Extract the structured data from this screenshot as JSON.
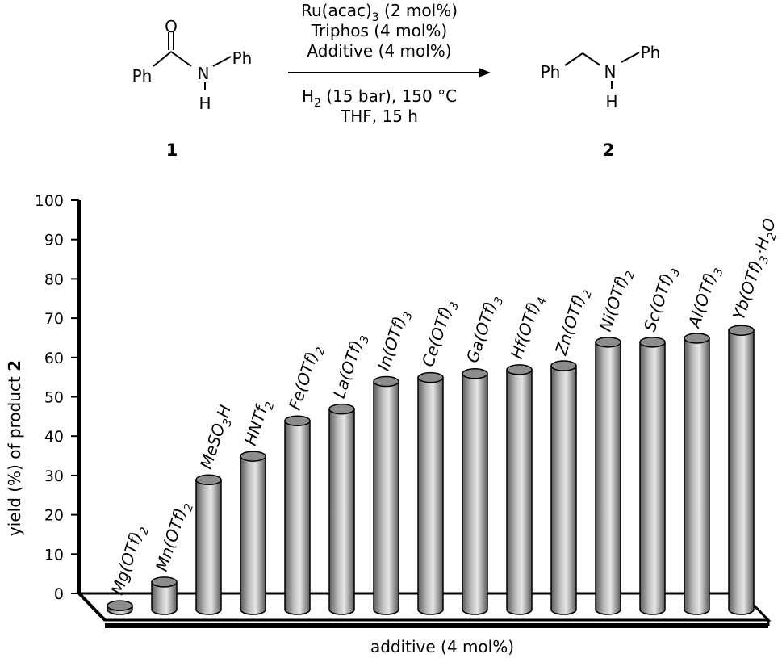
{
  "scheme": {
    "reactant": {
      "top_atom": "O",
      "left_group": "Ph",
      "n_atom": "N",
      "right_group": "Ph",
      "h_atom": "H",
      "number": "1"
    },
    "product": {
      "left_group": "Ph",
      "n_atom": "N",
      "right_group": "Ph",
      "h_atom": "H",
      "number": "2"
    },
    "conditions_above": [
      {
        "text": "Ru(acac)",
        "sub": "3",
        "tail": " (2 mol%)"
      },
      {
        "text": "Triphos (4 mol%)",
        "sub": "",
        "tail": ""
      },
      {
        "text": "Additive (4 mol%)",
        "sub": "",
        "tail": ""
      }
    ],
    "conditions_below": [
      {
        "text": "H",
        "sub": "2",
        "tail": " (15 bar), 150 °C"
      },
      {
        "text": "THF, 15 h",
        "sub": "",
        "tail": ""
      }
    ]
  },
  "chart_data": {
    "type": "bar",
    "ylabel_prefix": "yield (%) of product ",
    "ylabel_bold": "2",
    "xlabel": "additive (4 mol%)",
    "ylim": [
      0,
      100
    ],
    "yticks": [
      "0",
      "10",
      "20",
      "30",
      "40",
      "50",
      "60",
      "70",
      "80",
      "90",
      "100"
    ],
    "categories": [
      {
        "parts": [
          [
            "Mg(OTf)",
            ""
          ],
          [
            "2",
            "sub"
          ]
        ]
      },
      {
        "parts": [
          [
            "Mn(OTf)",
            ""
          ],
          [
            "2",
            "sub"
          ]
        ]
      },
      {
        "parts": [
          [
            "MeSO",
            ""
          ],
          [
            "3",
            "sub"
          ],
          [
            "H",
            ""
          ]
        ]
      },
      {
        "parts": [
          [
            "HNTf",
            ""
          ],
          [
            "2",
            "sub"
          ]
        ]
      },
      {
        "parts": [
          [
            "Fe(OTf)",
            ""
          ],
          [
            "2",
            "sub"
          ]
        ]
      },
      {
        "parts": [
          [
            "La(OTf)",
            ""
          ],
          [
            "3",
            "sub"
          ]
        ]
      },
      {
        "parts": [
          [
            "In(OTf)",
            ""
          ],
          [
            "3",
            "sub"
          ]
        ]
      },
      {
        "parts": [
          [
            "Ce(OTf)",
            ""
          ],
          [
            "3",
            "sub"
          ]
        ]
      },
      {
        "parts": [
          [
            "Ga(OTf)",
            ""
          ],
          [
            "3",
            "sub"
          ]
        ]
      },
      {
        "parts": [
          [
            "Hf(OTf)",
            ""
          ],
          [
            "4",
            "sub"
          ]
        ]
      },
      {
        "parts": [
          [
            "Zn(OTf)",
            ""
          ],
          [
            "2",
            "sub"
          ]
        ]
      },
      {
        "parts": [
          [
            "Ni(OTf)",
            ""
          ],
          [
            "2",
            "sub"
          ]
        ]
      },
      {
        "parts": [
          [
            "Sc(OTf)",
            ""
          ],
          [
            "3",
            "sub"
          ]
        ]
      },
      {
        "parts": [
          [
            "Al(OTf)",
            ""
          ],
          [
            "3",
            "sub"
          ]
        ]
      },
      {
        "parts": [
          [
            "Yb(OTf)",
            ""
          ],
          [
            "3",
            "sub"
          ],
          [
            "·H",
            ""
          ],
          [
            "2",
            "sub"
          ],
          [
            "O",
            ""
          ]
        ]
      }
    ],
    "values": [
      1,
      7,
      33,
      39,
      48,
      51,
      58,
      59,
      60,
      61,
      62,
      68,
      68,
      69,
      71
    ],
    "colors": {
      "bar_dark": "#5a5a5a",
      "bar_mid": "#bdbdbd",
      "bar_light": "#e6e6e6",
      "top": "#8c8c8c"
    }
  }
}
